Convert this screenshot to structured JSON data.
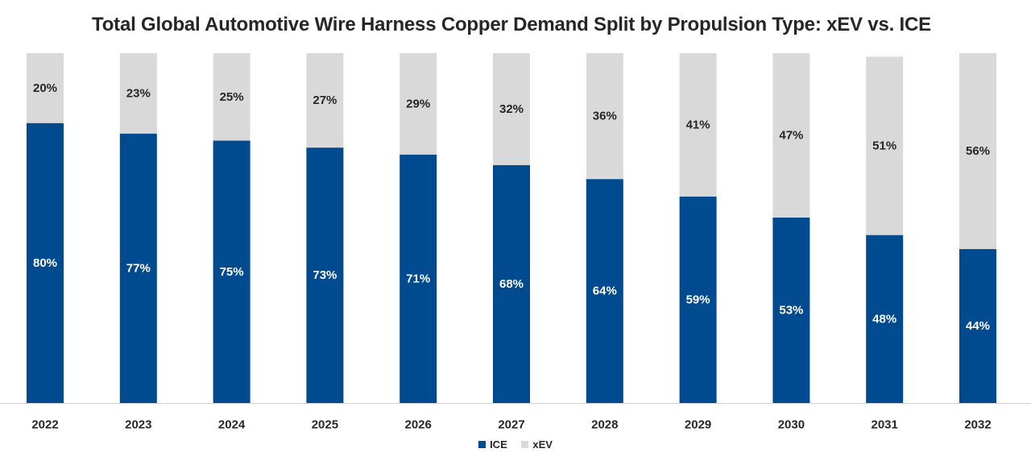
{
  "chart_data": {
    "type": "bar",
    "stacked": true,
    "title": "Total Global Automotive Wire Harness Copper Demand Split by Propulsion Type: xEV vs. ICE",
    "categories": [
      "2022",
      "2023",
      "2024",
      "2025",
      "2026",
      "2027",
      "2028",
      "2029",
      "2030",
      "2031",
      "2032"
    ],
    "series": [
      {
        "name": "ICE",
        "color": "#004a8f",
        "values": [
          80,
          77,
          75,
          73,
          71,
          68,
          64,
          59,
          53,
          48,
          44
        ]
      },
      {
        "name": "xEV",
        "color": "#d9d9d9",
        "values": [
          20,
          23,
          25,
          27,
          29,
          32,
          36,
          41,
          47,
          51,
          56
        ]
      }
    ],
    "value_suffix": "%",
    "ylim": [
      0,
      100
    ],
    "xlabel": "",
    "ylabel": "",
    "grid": false,
    "legend_position": "bottom"
  }
}
